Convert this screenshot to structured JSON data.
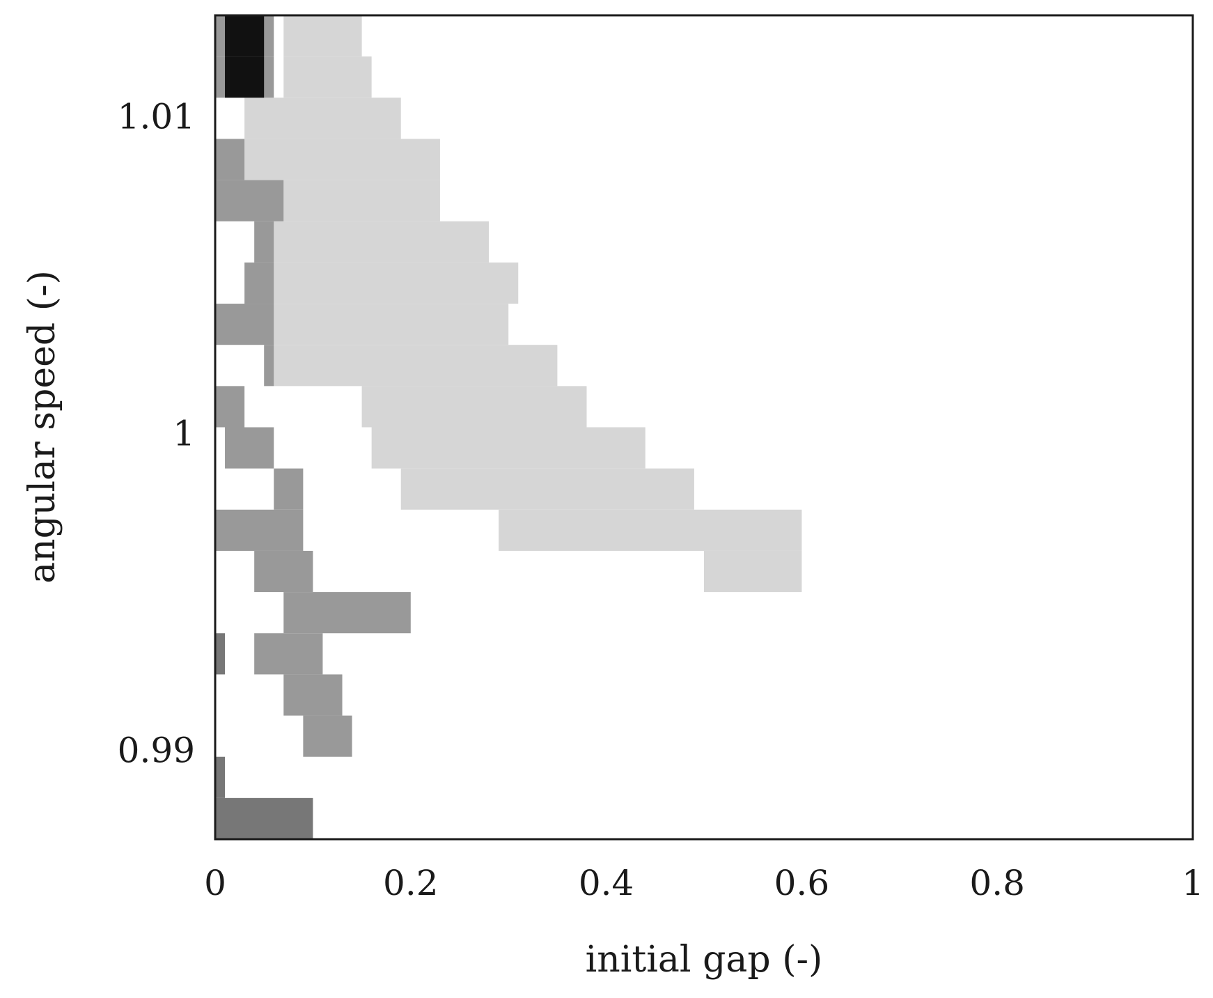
{
  "chart_data": {
    "type": "heatmap",
    "title": "",
    "xlabel": "initial gap (-)",
    "ylabel": "angular speed (-)",
    "xlim": [
      0,
      1
    ],
    "ylim": [
      0.9872,
      1.0132
    ],
    "grid": false,
    "legend": "none",
    "x_ticks": [
      {
        "value": 0,
        "label": "0"
      },
      {
        "value": 0.2,
        "label": "0.2"
      },
      {
        "value": 0.4,
        "label": "0.4"
      },
      {
        "value": 0.6,
        "label": "0.6"
      },
      {
        "value": 0.8,
        "label": "0.8"
      },
      {
        "value": 1,
        "label": "1"
      }
    ],
    "y_ticks": [
      {
        "value": 0.99,
        "label": "0.99"
      },
      {
        "value": 1.0,
        "label": "1"
      },
      {
        "value": 1.01,
        "label": "1.01"
      }
    ],
    "colors": {
      "light": "#d6d6d6",
      "mid": "#999999",
      "dark": "#777777",
      "black": "#111111"
    },
    "cell_height": 0.0013,
    "cells": [
      {
        "y": 1.0119,
        "x0": 0.07,
        "x1": 0.15,
        "shade": "light"
      },
      {
        "y": 1.0106,
        "x0": 0.07,
        "x1": 0.16,
        "shade": "light"
      },
      {
        "y": 1.0093,
        "x0": 0.03,
        "x1": 0.19,
        "shade": "light"
      },
      {
        "y": 1.008,
        "x0": 0.03,
        "x1": 0.23,
        "shade": "light"
      },
      {
        "y": 1.0067,
        "x0": 0.07,
        "x1": 0.23,
        "shade": "light"
      },
      {
        "y": 1.0054,
        "x0": 0.06,
        "x1": 0.28,
        "shade": "light"
      },
      {
        "y": 1.0041,
        "x0": 0.06,
        "x1": 0.31,
        "shade": "light"
      },
      {
        "y": 1.0028,
        "x0": 0.06,
        "x1": 0.3,
        "shade": "light"
      },
      {
        "y": 1.0015,
        "x0": 0.06,
        "x1": 0.35,
        "shade": "light"
      },
      {
        "y": 1.0002,
        "x0": 0.15,
        "x1": 0.38,
        "shade": "light"
      },
      {
        "y": 0.9989,
        "x0": 0.16,
        "x1": 0.44,
        "shade": "light"
      },
      {
        "y": 0.9976,
        "x0": 0.19,
        "x1": 0.49,
        "shade": "light"
      },
      {
        "y": 0.9963,
        "x0": 0.29,
        "x1": 0.6,
        "shade": "light"
      },
      {
        "y": 0.995,
        "x0": 0.5,
        "x1": 0.6,
        "shade": "light"
      },
      {
        "y": 1.0119,
        "x0": 0.0,
        "x1": 0.06,
        "shade": "mid"
      },
      {
        "y": 1.0106,
        "x0": 0.0,
        "x1": 0.06,
        "shade": "mid"
      },
      {
        "y": 1.008,
        "x0": 0.0,
        "x1": 0.03,
        "shade": "mid"
      },
      {
        "y": 1.0067,
        "x0": 0.0,
        "x1": 0.07,
        "shade": "mid"
      },
      {
        "y": 1.0054,
        "x0": 0.04,
        "x1": 0.06,
        "shade": "mid"
      },
      {
        "y": 1.0041,
        "x0": 0.03,
        "x1": 0.06,
        "shade": "mid"
      },
      {
        "y": 1.0028,
        "x0": 0.0,
        "x1": 0.06,
        "shade": "mid"
      },
      {
        "y": 1.0015,
        "x0": 0.05,
        "x1": 0.06,
        "shade": "mid"
      },
      {
        "y": 1.0002,
        "x0": 0.0,
        "x1": 0.03,
        "shade": "mid"
      },
      {
        "y": 0.9989,
        "x0": 0.01,
        "x1": 0.06,
        "shade": "mid"
      },
      {
        "y": 0.9976,
        "x0": 0.06,
        "x1": 0.09,
        "shade": "mid"
      },
      {
        "y": 0.9963,
        "x0": 0.0,
        "x1": 0.09,
        "shade": "mid"
      },
      {
        "y": 0.995,
        "x0": 0.04,
        "x1": 0.1,
        "shade": "mid"
      },
      {
        "y": 0.9937,
        "x0": 0.07,
        "x1": 0.2,
        "shade": "mid"
      },
      {
        "y": 0.9924,
        "x0": 0.04,
        "x1": 0.11,
        "shade": "mid"
      },
      {
        "y": 0.9911,
        "x0": 0.07,
        "x1": 0.13,
        "shade": "mid"
      },
      {
        "y": 0.9898,
        "x0": 0.09,
        "x1": 0.14,
        "shade": "mid"
      },
      {
        "y": 0.9924,
        "x0": 0.0,
        "x1": 0.01,
        "shade": "dark"
      },
      {
        "y": 0.9885,
        "x0": 0.0,
        "x1": 0.01,
        "shade": "dark"
      },
      {
        "y": 0.9872,
        "x0": 0.0,
        "x1": 0.1,
        "shade": "dark"
      },
      {
        "y": 1.0119,
        "x0": 0.01,
        "x1": 0.05,
        "shade": "black"
      },
      {
        "y": 1.0106,
        "x0": 0.01,
        "x1": 0.05,
        "shade": "black"
      }
    ]
  }
}
